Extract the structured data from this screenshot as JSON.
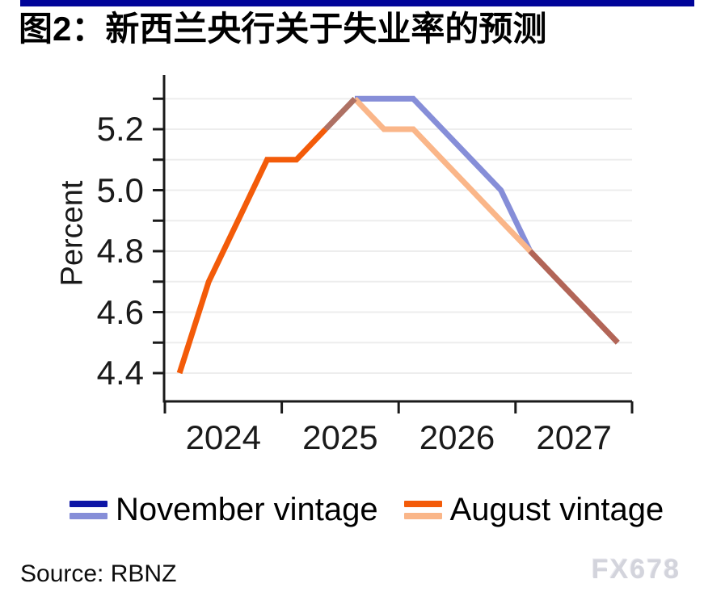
{
  "title": "图2：新西兰央行关于失业率的预测",
  "source": "Source: RBNZ",
  "watermark": "FX678",
  "colors": {
    "title_bar": "#000499",
    "axis": "#1a1a1a",
    "grid": "#ededed",
    "watermark": "#d3d4dc",
    "history_blend": "#ae7164",
    "tail_blend": "#b26557"
  },
  "chart_data": {
    "type": "line",
    "title": "图2：新西兰央行关于失业率的预测",
    "ylabel": "Percent",
    "xlabel": "",
    "ylim": [
      4.3,
      5.4
    ],
    "grid": "horizontal",
    "legend_position": "bottom",
    "y_gridline_values": [
      4.4,
      4.5,
      4.6,
      4.7,
      4.8,
      4.9,
      5.0,
      5.1,
      5.2,
      5.3
    ],
    "y_labeled_values": [
      5.2,
      5.0,
      4.8,
      4.6,
      4.4
    ],
    "y_tick_labels": [
      "5.2",
      "5.0",
      "4.8",
      "4.6",
      "4.4"
    ],
    "x_tick_labels": [
      "2024",
      "2025",
      "2026",
      "2027"
    ],
    "x_year_span": [
      2024,
      2028
    ],
    "quarters": [
      "2024Q1",
      "2024Q2",
      "2024Q3",
      "2024Q4",
      "2025Q1",
      "2025Q2",
      "2025Q3",
      "2025Q4",
      "2026Q1",
      "2026Q2",
      "2026Q3",
      "2026Q4",
      "2027Q1",
      "2027Q2",
      "2027Q3",
      "2027Q4"
    ],
    "history_end_index": 5,
    "converge_index": 12,
    "series": [
      {
        "name": "November vintage",
        "color_dark": "#0e16a6",
        "color_light": "#868ed8",
        "values": [
          4.4,
          4.7,
          4.9,
          5.1,
          5.1,
          5.2,
          5.3,
          5.3,
          5.3,
          5.2,
          5.1,
          5.0,
          4.8,
          4.7,
          4.6,
          4.5
        ]
      },
      {
        "name": "August vintage",
        "color_dark": "#f35b09",
        "color_light": "#fab689",
        "values": [
          4.4,
          4.7,
          4.9,
          5.1,
          5.1,
          5.2,
          5.3,
          5.2,
          5.2,
          5.1,
          5.0,
          4.9,
          4.8,
          4.7,
          4.6,
          4.5
        ]
      }
    ]
  }
}
